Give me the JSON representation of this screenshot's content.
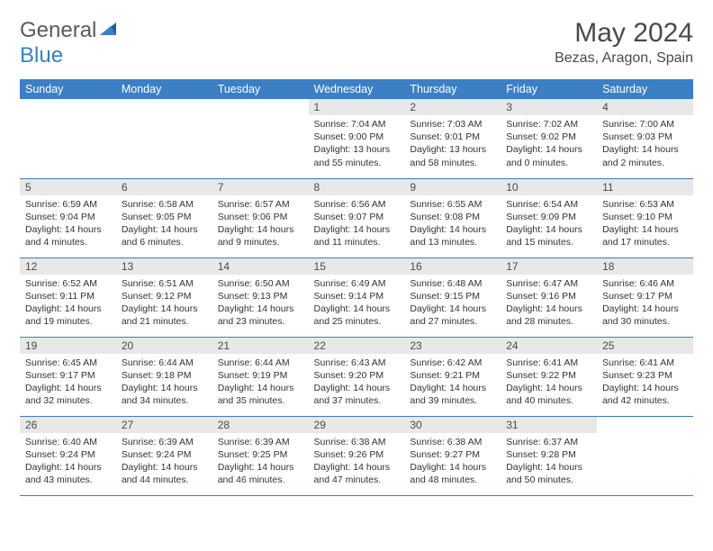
{
  "logo": {
    "word1": "General",
    "word2": "Blue"
  },
  "title": "May 2024",
  "location": "Bezas, Aragon, Spain",
  "colors": {
    "header_bg": "#3b7fc4",
    "header_text": "#ffffff",
    "daynum_bg": "#e8e8e8",
    "text": "#333333",
    "border": "#3b7fc4"
  },
  "weekdays": [
    "Sunday",
    "Monday",
    "Tuesday",
    "Wednesday",
    "Thursday",
    "Friday",
    "Saturday"
  ],
  "weeks": [
    [
      null,
      null,
      null,
      {
        "n": "1",
        "sr": "Sunrise: 7:04 AM",
        "ss": "Sunset: 9:00 PM",
        "dl": "Daylight: 13 hours and 55 minutes."
      },
      {
        "n": "2",
        "sr": "Sunrise: 7:03 AM",
        "ss": "Sunset: 9:01 PM",
        "dl": "Daylight: 13 hours and 58 minutes."
      },
      {
        "n": "3",
        "sr": "Sunrise: 7:02 AM",
        "ss": "Sunset: 9:02 PM",
        "dl": "Daylight: 14 hours and 0 minutes."
      },
      {
        "n": "4",
        "sr": "Sunrise: 7:00 AM",
        "ss": "Sunset: 9:03 PM",
        "dl": "Daylight: 14 hours and 2 minutes."
      }
    ],
    [
      {
        "n": "5",
        "sr": "Sunrise: 6:59 AM",
        "ss": "Sunset: 9:04 PM",
        "dl": "Daylight: 14 hours and 4 minutes."
      },
      {
        "n": "6",
        "sr": "Sunrise: 6:58 AM",
        "ss": "Sunset: 9:05 PM",
        "dl": "Daylight: 14 hours and 6 minutes."
      },
      {
        "n": "7",
        "sr": "Sunrise: 6:57 AM",
        "ss": "Sunset: 9:06 PM",
        "dl": "Daylight: 14 hours and 9 minutes."
      },
      {
        "n": "8",
        "sr": "Sunrise: 6:56 AM",
        "ss": "Sunset: 9:07 PM",
        "dl": "Daylight: 14 hours and 11 minutes."
      },
      {
        "n": "9",
        "sr": "Sunrise: 6:55 AM",
        "ss": "Sunset: 9:08 PM",
        "dl": "Daylight: 14 hours and 13 minutes."
      },
      {
        "n": "10",
        "sr": "Sunrise: 6:54 AM",
        "ss": "Sunset: 9:09 PM",
        "dl": "Daylight: 14 hours and 15 minutes."
      },
      {
        "n": "11",
        "sr": "Sunrise: 6:53 AM",
        "ss": "Sunset: 9:10 PM",
        "dl": "Daylight: 14 hours and 17 minutes."
      }
    ],
    [
      {
        "n": "12",
        "sr": "Sunrise: 6:52 AM",
        "ss": "Sunset: 9:11 PM",
        "dl": "Daylight: 14 hours and 19 minutes."
      },
      {
        "n": "13",
        "sr": "Sunrise: 6:51 AM",
        "ss": "Sunset: 9:12 PM",
        "dl": "Daylight: 14 hours and 21 minutes."
      },
      {
        "n": "14",
        "sr": "Sunrise: 6:50 AM",
        "ss": "Sunset: 9:13 PM",
        "dl": "Daylight: 14 hours and 23 minutes."
      },
      {
        "n": "15",
        "sr": "Sunrise: 6:49 AM",
        "ss": "Sunset: 9:14 PM",
        "dl": "Daylight: 14 hours and 25 minutes."
      },
      {
        "n": "16",
        "sr": "Sunrise: 6:48 AM",
        "ss": "Sunset: 9:15 PM",
        "dl": "Daylight: 14 hours and 27 minutes."
      },
      {
        "n": "17",
        "sr": "Sunrise: 6:47 AM",
        "ss": "Sunset: 9:16 PM",
        "dl": "Daylight: 14 hours and 28 minutes."
      },
      {
        "n": "18",
        "sr": "Sunrise: 6:46 AM",
        "ss": "Sunset: 9:17 PM",
        "dl": "Daylight: 14 hours and 30 minutes."
      }
    ],
    [
      {
        "n": "19",
        "sr": "Sunrise: 6:45 AM",
        "ss": "Sunset: 9:17 PM",
        "dl": "Daylight: 14 hours and 32 minutes."
      },
      {
        "n": "20",
        "sr": "Sunrise: 6:44 AM",
        "ss": "Sunset: 9:18 PM",
        "dl": "Daylight: 14 hours and 34 minutes."
      },
      {
        "n": "21",
        "sr": "Sunrise: 6:44 AM",
        "ss": "Sunset: 9:19 PM",
        "dl": "Daylight: 14 hours and 35 minutes."
      },
      {
        "n": "22",
        "sr": "Sunrise: 6:43 AM",
        "ss": "Sunset: 9:20 PM",
        "dl": "Daylight: 14 hours and 37 minutes."
      },
      {
        "n": "23",
        "sr": "Sunrise: 6:42 AM",
        "ss": "Sunset: 9:21 PM",
        "dl": "Daylight: 14 hours and 39 minutes."
      },
      {
        "n": "24",
        "sr": "Sunrise: 6:41 AM",
        "ss": "Sunset: 9:22 PM",
        "dl": "Daylight: 14 hours and 40 minutes."
      },
      {
        "n": "25",
        "sr": "Sunrise: 6:41 AM",
        "ss": "Sunset: 9:23 PM",
        "dl": "Daylight: 14 hours and 42 minutes."
      }
    ],
    [
      {
        "n": "26",
        "sr": "Sunrise: 6:40 AM",
        "ss": "Sunset: 9:24 PM",
        "dl": "Daylight: 14 hours and 43 minutes."
      },
      {
        "n": "27",
        "sr": "Sunrise: 6:39 AM",
        "ss": "Sunset: 9:24 PM",
        "dl": "Daylight: 14 hours and 44 minutes."
      },
      {
        "n": "28",
        "sr": "Sunrise: 6:39 AM",
        "ss": "Sunset: 9:25 PM",
        "dl": "Daylight: 14 hours and 46 minutes."
      },
      {
        "n": "29",
        "sr": "Sunrise: 6:38 AM",
        "ss": "Sunset: 9:26 PM",
        "dl": "Daylight: 14 hours and 47 minutes."
      },
      {
        "n": "30",
        "sr": "Sunrise: 6:38 AM",
        "ss": "Sunset: 9:27 PM",
        "dl": "Daylight: 14 hours and 48 minutes."
      },
      {
        "n": "31",
        "sr": "Sunrise: 6:37 AM",
        "ss": "Sunset: 9:28 PM",
        "dl": "Daylight: 14 hours and 50 minutes."
      },
      null
    ]
  ]
}
